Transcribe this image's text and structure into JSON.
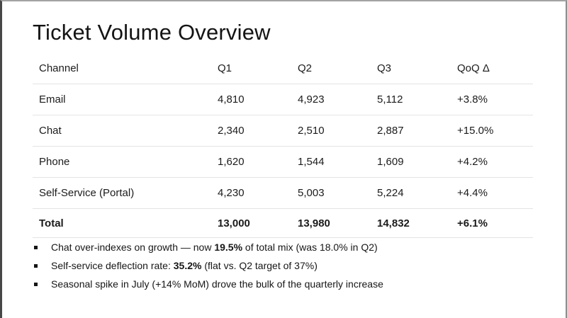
{
  "slide": {
    "title": "Ticket Volume Overview"
  },
  "table": {
    "columns": {
      "channel": "Channel",
      "q1": "Q1",
      "q2": "Q2",
      "q3": "Q3",
      "qoq": "QoQ Δ"
    },
    "rows": [
      {
        "channel": "Email",
        "q1": "4,810",
        "q2": "4,923",
        "q3": "5,112",
        "qoq": "+3.8%"
      },
      {
        "channel": "Chat",
        "q1": "2,340",
        "q2": "2,510",
        "q3": "2,887",
        "qoq": "+15.0%"
      },
      {
        "channel": "Phone",
        "q1": "1,620",
        "q2": "1,544",
        "q3": "1,609",
        "qoq": "+4.2%"
      },
      {
        "channel": "Self-Service (Portal)",
        "q1": "4,230",
        "q2": "5,003",
        "q3": "5,224",
        "qoq": "+4.4%"
      }
    ],
    "total": {
      "channel": "Total",
      "q1": "13,000",
      "q2": "13,980",
      "q3": "14,832",
      "qoq": "+6.1%"
    }
  },
  "bullets": [
    {
      "pre": "Chat over-indexes on growth — now ",
      "bold": "19.5%",
      "post": " of total mix (was 18.0% in Q2)"
    },
    {
      "pre": "Self-service deflection rate: ",
      "bold": "35.2%",
      "post": " (flat vs. Q2 target of 37%)"
    },
    {
      "pre": "Seasonal spike in July (+14% MoM) drove the bulk of the quarterly increase",
      "bold": "",
      "post": ""
    }
  ]
}
